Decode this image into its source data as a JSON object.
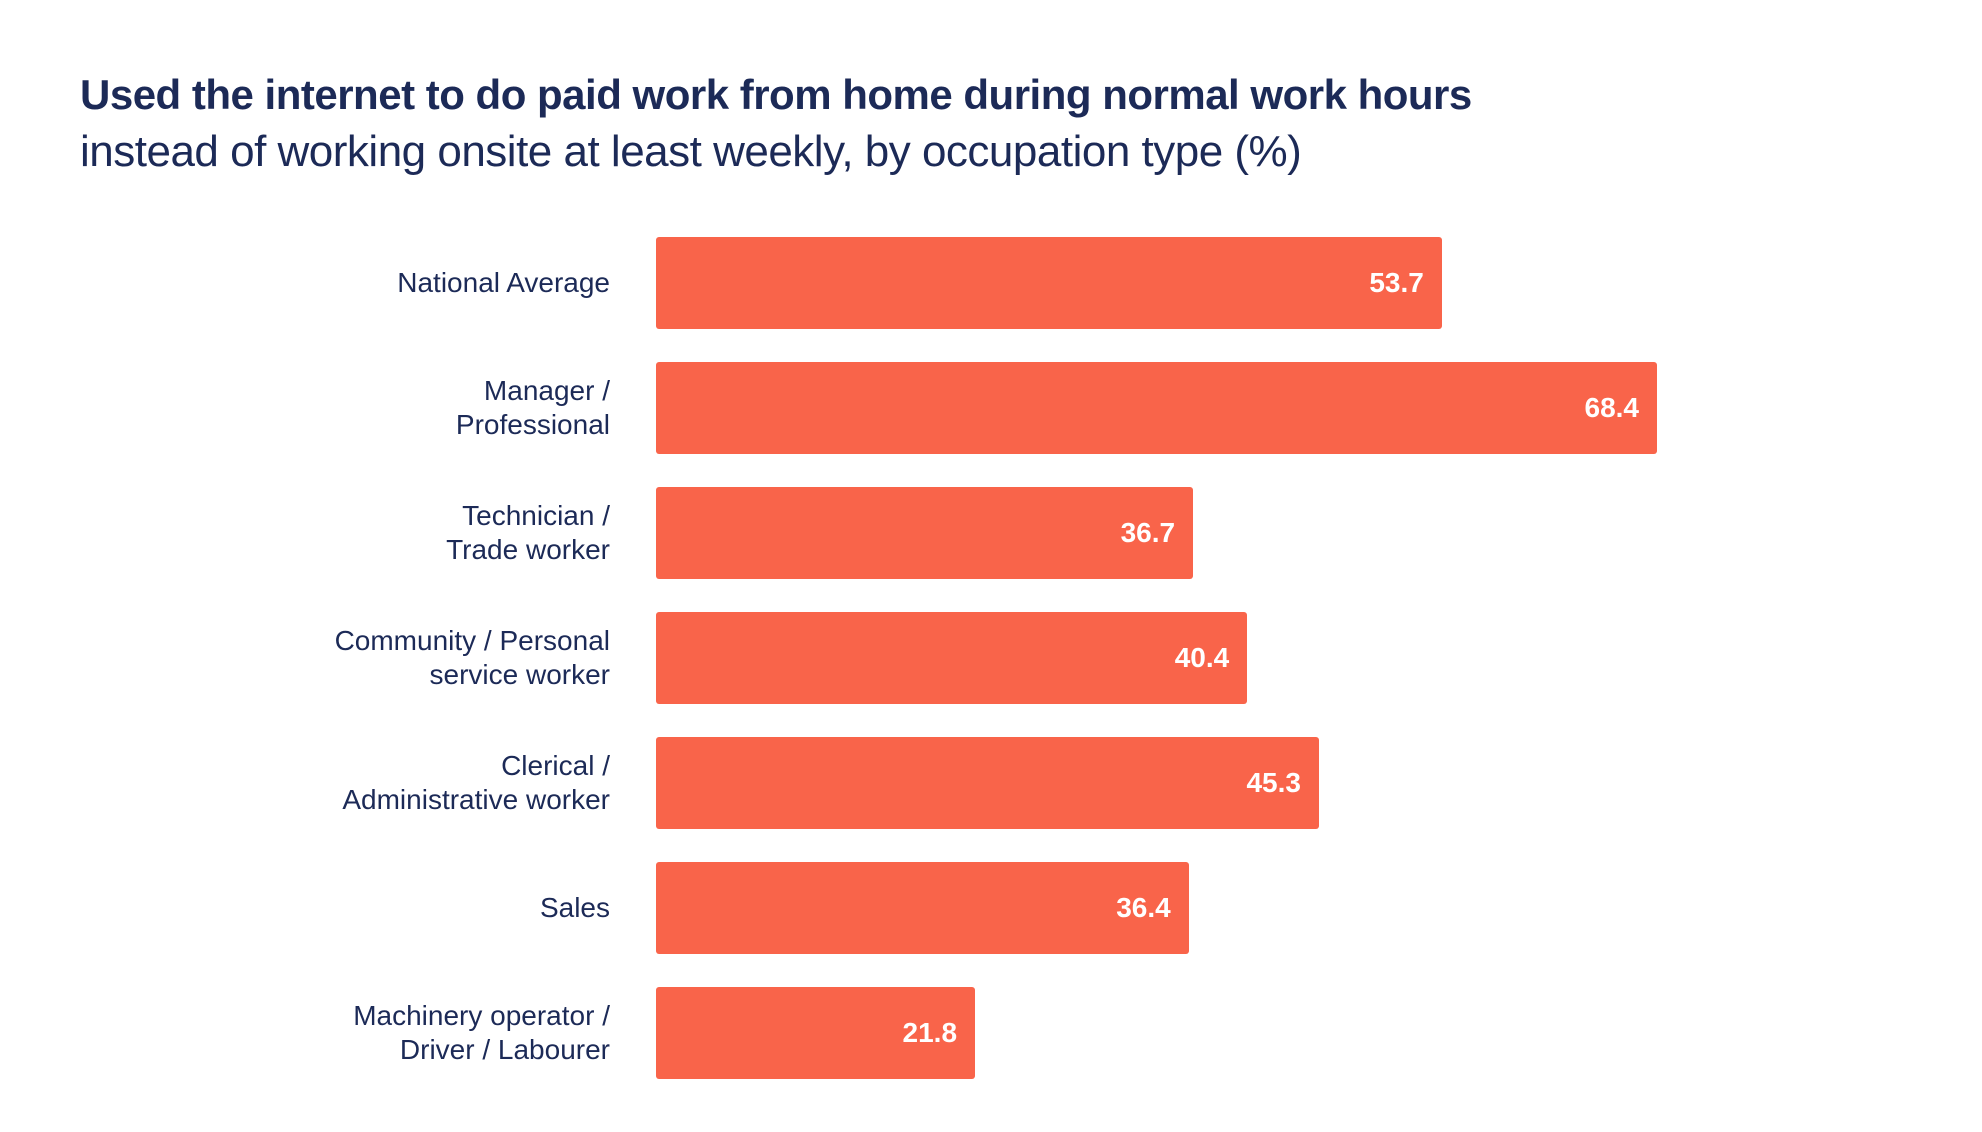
{
  "chart_data": {
    "type": "bar",
    "orientation": "horizontal",
    "title": "Used the internet to do paid work from home during normal work hours",
    "subtitle": "instead of working onsite at least weekly, by occupation type (%)",
    "categories": [
      "National Average",
      "Manager /\nProfessional",
      "Technician /\nTrade worker",
      "Community / Personal\nservice worker",
      "Clerical /\nAdministrative worker",
      "Sales",
      "Machinery operator /\nDriver / Labourer"
    ],
    "values": [
      53.7,
      68.4,
      36.7,
      40.4,
      45.3,
      36.4,
      21.8
    ],
    "value_labels": [
      "53.7",
      "68.4",
      "36.7",
      "40.4",
      "45.3",
      "36.4",
      "21.8"
    ],
    "xlim": [
      0,
      68.4
    ],
    "grid": false,
    "colors": {
      "bar": "#f9644a",
      "text": "#1c2a57",
      "value_label": "#ffffff"
    }
  }
}
